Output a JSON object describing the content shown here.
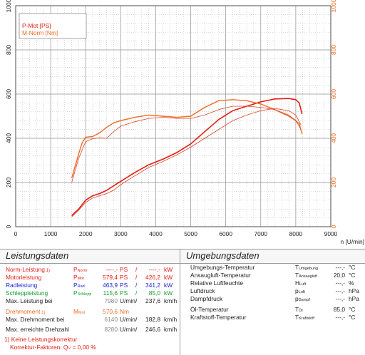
{
  "chart_data": {
    "type": "line",
    "xlabel": "n [U/min]",
    "xlim": [
      0,
      9000
    ],
    "x_ticks": [
      "0",
      "1000",
      "2000",
      "3000",
      "4000",
      "5000",
      "6000",
      "7000",
      "8000",
      "9000"
    ],
    "y_left_lim": [
      0,
      1000
    ],
    "y_left_ticks": [
      "0",
      "200",
      "400",
      "600",
      "800",
      "1000"
    ],
    "y_right_lim": [
      0,
      1000
    ],
    "y_right_ticks": [
      "0",
      "200",
      "400",
      "600",
      "800",
      "1000"
    ],
    "legend": [
      "P-Mot [PS]",
      "M-Norm [Nm]"
    ],
    "grid": true,
    "colors": {
      "power": "#e41b12",
      "torque": "#f06a20",
      "thin": "#d8442a",
      "axis_right": "#f06a20"
    },
    "series": [
      {
        "name": "P-Mot [PS]",
        "x": [
          1600,
          1800,
          2000,
          2200,
          2400,
          2600,
          2800,
          3000,
          3400,
          3800,
          4200,
          4600,
          5000,
          5400,
          5800,
          6200,
          6600,
          7000,
          7400,
          7800,
          8000,
          8100,
          8180
        ],
        "y": [
          50,
          80,
          120,
          140,
          150,
          165,
          185,
          205,
          245,
          280,
          305,
          335,
          375,
          430,
          485,
          525,
          545,
          565,
          578,
          580,
          575,
          560,
          510
        ]
      },
      {
        "name": "M-Norm [Nm]",
        "x": [
          1600,
          1800,
          1900,
          2000,
          2200,
          2400,
          2600,
          2800,
          3000,
          3400,
          3800,
          4200,
          4600,
          5000,
          5400,
          5800,
          6200,
          6600,
          7000,
          7400,
          7800,
          8000,
          8100,
          8180
        ],
        "y": [
          220,
          330,
          380,
          405,
          408,
          425,
          450,
          470,
          480,
          495,
          505,
          500,
          495,
          500,
          540,
          570,
          575,
          570,
          555,
          530,
          500,
          480,
          465,
          420
        ]
      },
      {
        "name": "",
        "x": [
          1600,
          1800,
          2000,
          2200,
          2400,
          2600,
          2800,
          3000,
          3400,
          3800,
          4200,
          4600,
          5000,
          5400,
          5800,
          6200,
          6600,
          7000,
          7400,
          7800,
          8000,
          8150
        ],
        "y": [
          45,
          75,
          110,
          130,
          140,
          150,
          165,
          190,
          230,
          268,
          295,
          325,
          360,
          400,
          440,
          480,
          505,
          525,
          535,
          525,
          505,
          460
        ]
      },
      {
        "name": "",
        "x": [
          1600,
          1800,
          2000,
          2200,
          2400,
          2600,
          2800,
          3000,
          3400,
          3800,
          4200,
          4600,
          5000,
          5400,
          5800,
          6200,
          6600,
          7000,
          7400,
          7800,
          8000,
          8150
        ],
        "y": [
          200,
          310,
          385,
          398,
          402,
          400,
          430,
          455,
          475,
          490,
          495,
          490,
          490,
          505,
          530,
          545,
          545,
          540,
          530,
          505,
          480,
          440
        ]
      }
    ]
  },
  "left_panel": {
    "title": "Leistungsdaten",
    "rows": [
      {
        "label": "Norm-Leistung",
        "note": "1)",
        "sym": "P",
        "sub": "Norm",
        "v1": "----,-",
        "u1": "PS",
        "sep": "/",
        "v2": "----,-",
        "u2": "kW",
        "style": "red"
      },
      {
        "label": "Motorleistung",
        "sym": "P",
        "sub": "Mot",
        "v1": "579,4",
        "u1": "PS",
        "sep": "/",
        "v2": "426,2",
        "u2": "kW",
        "style": "red"
      },
      {
        "label": "Radleistung",
        "sym": "P",
        "sub": "Rad",
        "v1": "463,9",
        "u1": "PS",
        "sep": "/",
        "v2": "341,2",
        "u2": "kW",
        "style": "blue"
      },
      {
        "label": "Schleppleistung",
        "sym": "P",
        "sub": "Schlepp",
        "v1": "115,6",
        "u1": "PS",
        "sep": "/",
        "v2": "85,0",
        "u2": "kW",
        "style": "green"
      },
      {
        "label": "Max. Leistung bei",
        "v1": "7980",
        "u1": "U/min",
        "sep": "/",
        "v2": "237,6",
        "u2": "km/h",
        "style": "black"
      },
      {
        "label": "Drehmoment",
        "note": "1)",
        "sym": "M",
        "sub": "Mot",
        "v1": "570,6",
        "u1": "Nm",
        "style": "orange"
      },
      {
        "label": "Max. Drehmoment bei",
        "v1": "6140",
        "u1": "U/min",
        "sep": "/",
        "v2": "182,8",
        "u2": "km/h",
        "style": "black"
      },
      {
        "label": "Max. erreichte Drehzahl",
        "v1": "8280",
        "u1": "U/min",
        "sep": "/",
        "v2": "246,6",
        "u2": "km/h",
        "style": "black"
      }
    ],
    "footnote_line1": "1) Keine Leistungskorrektur",
    "footnote_line2": "Korrektur-Faktoren: Q",
    "footnote_sub": "V",
    "footnote_value": "=   0,00 %"
  },
  "right_panel": {
    "title": "Umgebungsdaten",
    "rows": [
      {
        "label": "Umgebungs-Temperatur",
        "sym": "T",
        "sub": "Umgebung",
        "value": "---,-",
        "unit": "°C"
      },
      {
        "label": "Ansaugluft-Temperatur",
        "sym": "T",
        "sub": "Ansaugluft",
        "value": "20,0",
        "unit": "°C"
      },
      {
        "label": "Relative Luftfeuchte",
        "sym": "H",
        "sub": "Luft",
        "value": "---,-",
        "unit": "%"
      },
      {
        "label": "Luftdruck",
        "sym": "p",
        "sub": "Luft",
        "value": "---,-",
        "unit": "hPa"
      },
      {
        "label": "Dampfdruck",
        "sym": "p",
        "sub": "Dampf",
        "value": "---,-",
        "unit": "hPa"
      },
      {
        "label": "Öl-Temperatur",
        "sym": "T",
        "sub": "Öl",
        "value": "85,0",
        "unit": "°C"
      },
      {
        "label": "Kraftstoff-Temperatur",
        "sym": "T",
        "sub": "Kraftstoff",
        "value": "---,-",
        "unit": "°C"
      }
    ]
  }
}
